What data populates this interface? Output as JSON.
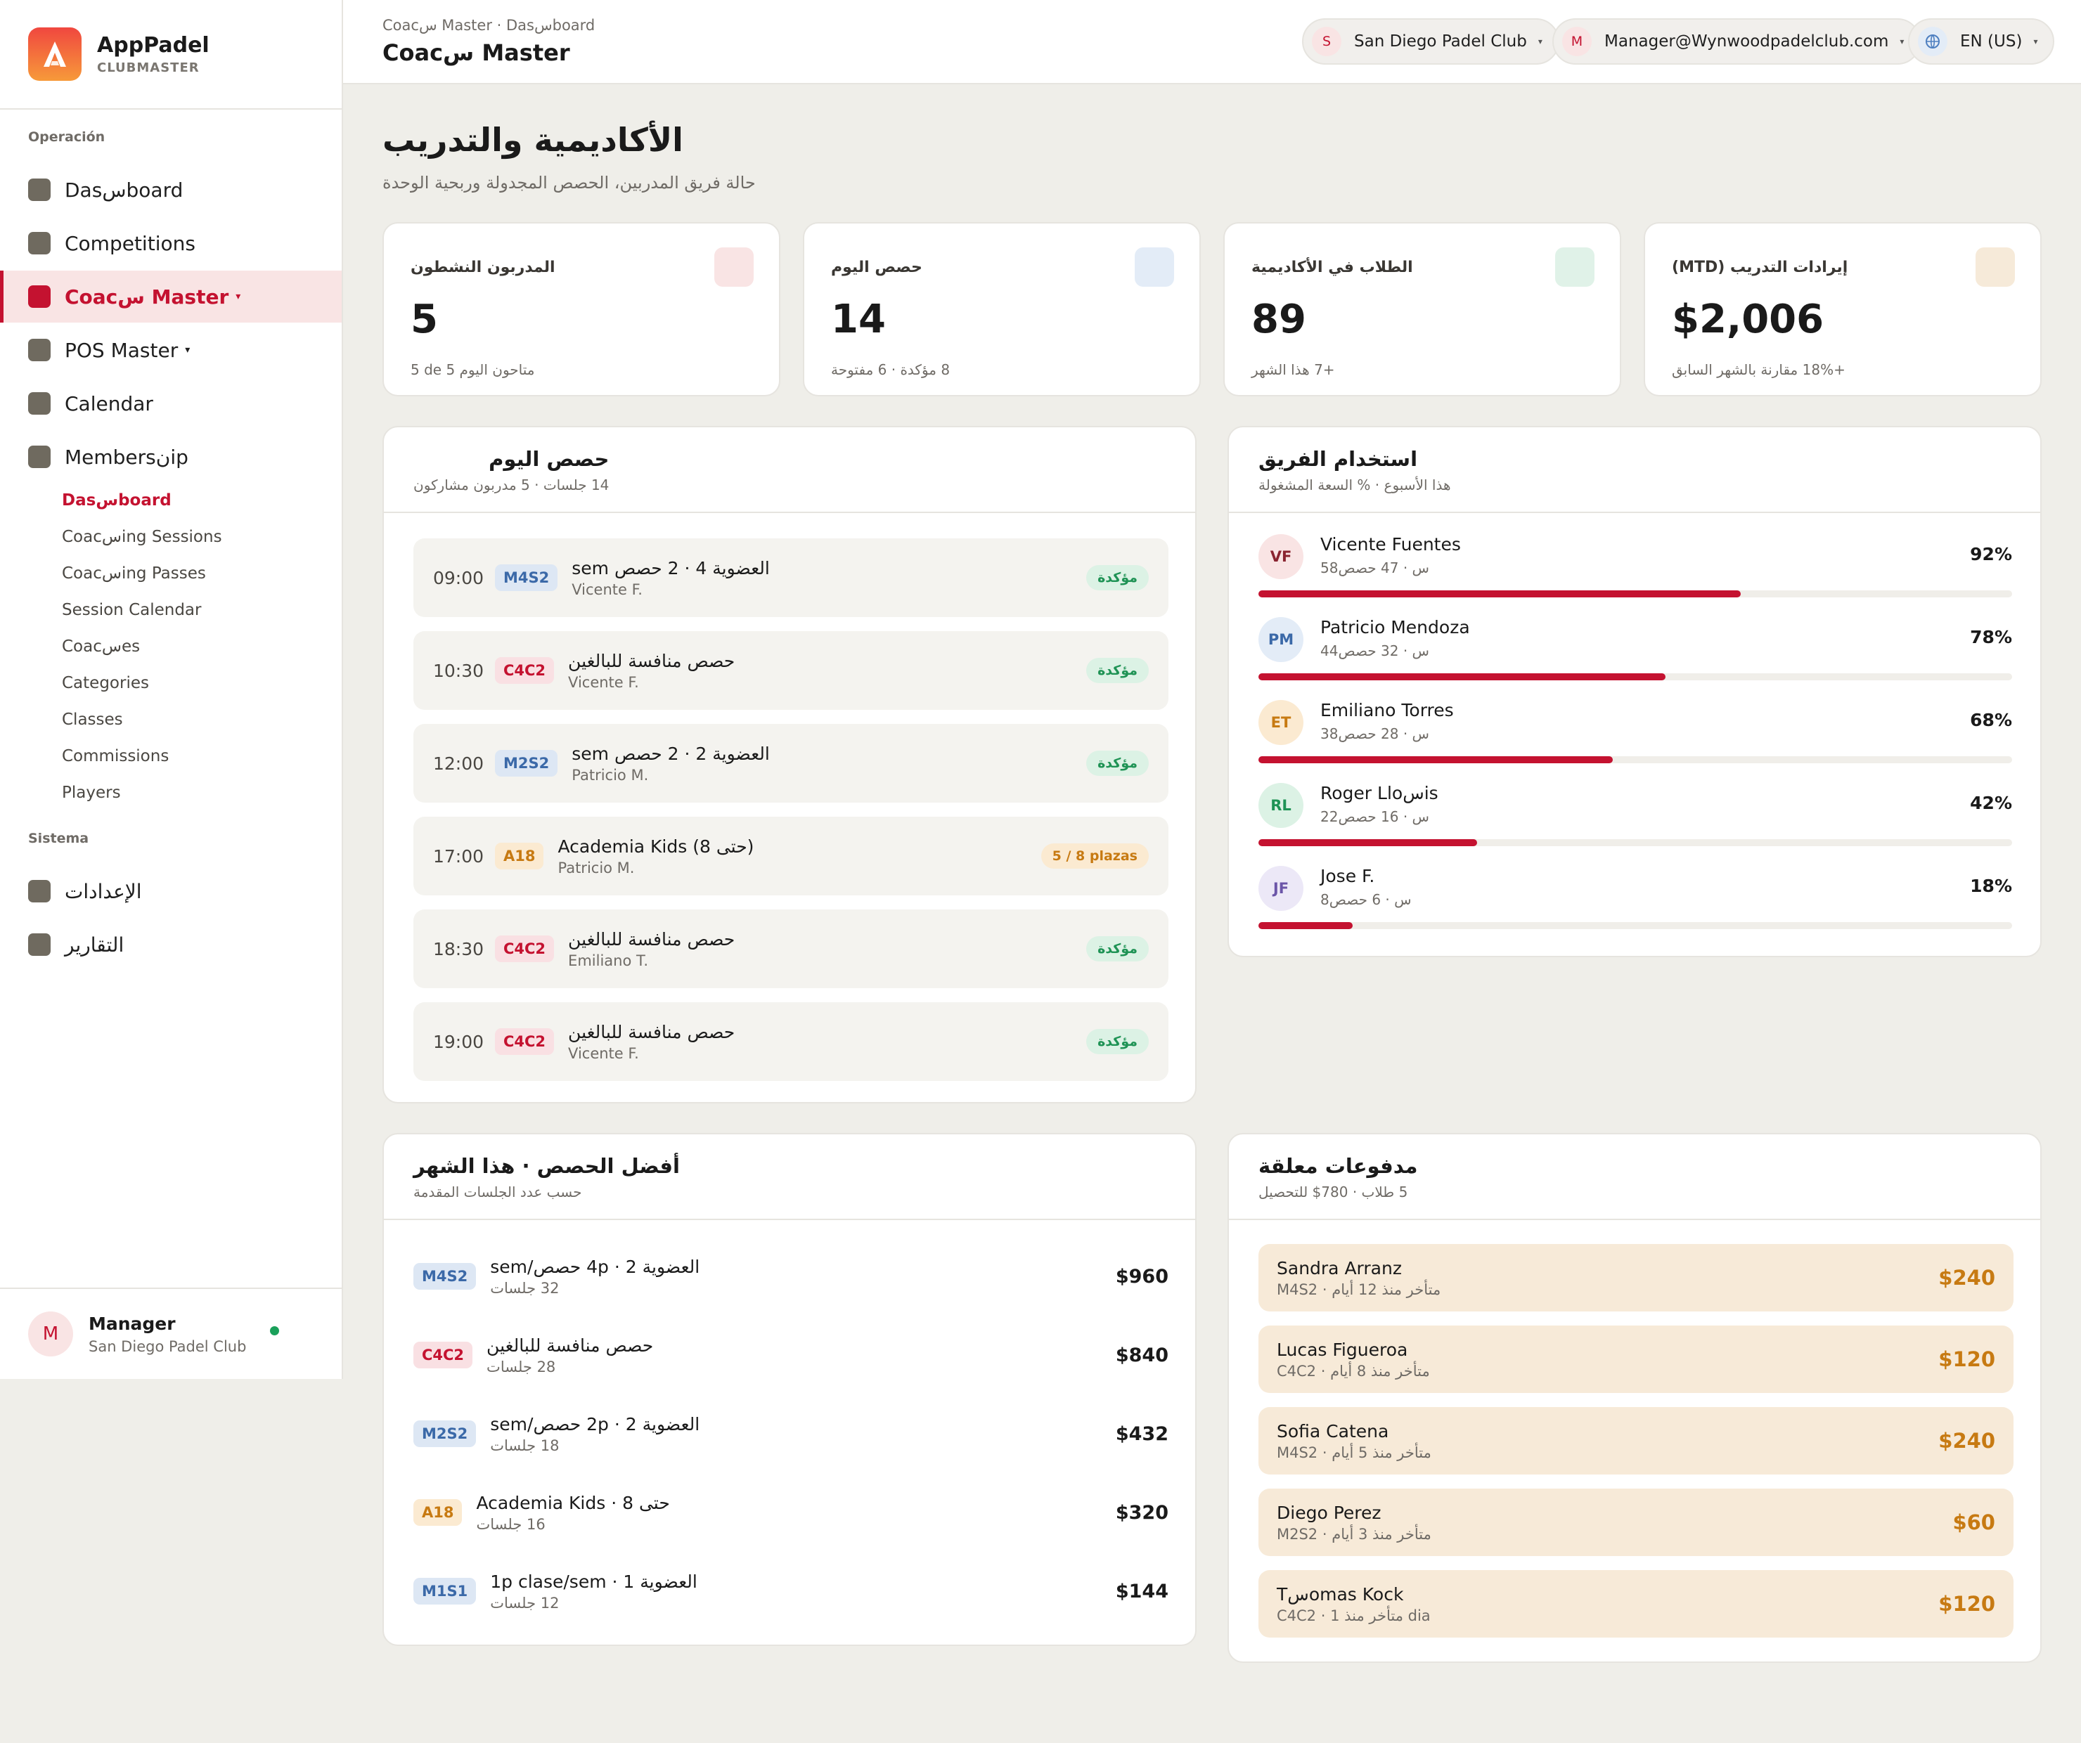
{
  "brand": {
    "name": "AppPadel",
    "sub": "CLUBMASTER"
  },
  "sidebar": {
    "section_ops": "Operación",
    "items": [
      {
        "label": "Dasسboard"
      },
      {
        "label": "Competitions"
      },
      {
        "label": "Coacس Master",
        "caret": "▾"
      },
      {
        "label": "POS Master",
        "caret": "▾"
      },
      {
        "label": "Calendar"
      },
      {
        "label": "Membersنip"
      }
    ],
    "sub_items": [
      {
        "label": "Dasسboard"
      },
      {
        "label": "Coacسing Sessions"
      },
      {
        "label": "Coacسing Passes"
      },
      {
        "label": "Session Calendar"
      },
      {
        "label": "Coacسes"
      },
      {
        "label": "Categories"
      },
      {
        "label": "Classes"
      },
      {
        "label": "Commissions"
      },
      {
        "label": "Players"
      }
    ],
    "section_sys": "Sistema",
    "sys_items": [
      {
        "label": "الإعدادات"
      },
      {
        "label": "التقارير"
      }
    ],
    "user": {
      "initial": "M",
      "name": "Manager",
      "club": "San Diego Padel Club"
    }
  },
  "topbar": {
    "breadcrumb": "Coacس Master · Dasسboard",
    "title": "Coacس Master",
    "club": {
      "initial": "S",
      "label": "San Diego Padel Club"
    },
    "account": {
      "initial": "M",
      "label": "Manager@Wynwoodpadelclub.com"
    },
    "lang": {
      "icon": "globe-icon",
      "label": "EN (US)"
    }
  },
  "page": {
    "title": "الأكاديمية والتدريب",
    "subtitle": "حالة فريق المدربين، الحصص المجدولة وربحية الوحدة"
  },
  "kpis": [
    {
      "label": "المدربون النشطون",
      "value": "5",
      "note": "5 de 5 متاحون اليوم",
      "color": "#f9e4e4"
    },
    {
      "label": "حصص اليوم",
      "value": "14",
      "note": "8 مؤكدة · 6 مفتوحة",
      "color": "#e3ecf7"
    },
    {
      "label": "الطلاب في الأكاديمية",
      "value": "89",
      "note": "+7 هذا الشهر",
      "color": "#e0f2e8"
    },
    {
      "label": "إيرادات التدريب (MTD)",
      "value": "$2,006",
      "note": "+18% مقارنة بالشهر السابق",
      "color": "#f6ead9"
    }
  ],
  "sessions": {
    "title": "حصص اليوم",
    "subtitle": "14 جلسات · 5 مدربون مشاركون",
    "rows": [
      {
        "time": "09:00",
        "code": "M4S2",
        "name": "العضوية 4 · 2 حصص sem",
        "coach": "Vicente F.",
        "status": "مؤكدة"
      },
      {
        "time": "10:30",
        "code": "C4C2",
        "name": "حصص منافسة للبالغين",
        "coach": "Vicente F.",
        "status": "مؤكدة"
      },
      {
        "time": "12:00",
        "code": "M2S2",
        "name": "العضوية 2 · 2 حصص sem",
        "coach": "Patricio M.",
        "status": "مؤكدة"
      },
      {
        "time": "17:00",
        "code": "A18",
        "name": "Academia Kids (حتى 8)",
        "coach": "Patricio M.",
        "status": "5 / 8 plazas"
      },
      {
        "time": "18:30",
        "code": "C4C2",
        "name": "حصص منافسة للبالغين",
        "coach": "Emiliano T.",
        "status": "مؤكدة"
      },
      {
        "time": "19:00",
        "code": "C4C2",
        "name": "حصص منافسة للبالغين",
        "coach": "Vicente F.",
        "status": "مؤكدة"
      }
    ]
  },
  "team": {
    "title": "استخدام الفريق",
    "subtitle": "هذا الأسبوع · % السعة المشغولة",
    "rows": [
      {
        "initials": "VF",
        "name": "Vicente Fuentes",
        "meta": "58س · 47 حصص",
        "pct_label": "92%",
        "pct": 0.64
      },
      {
        "initials": "PM",
        "name": "Patricio Mendoza",
        "meta": "44س · 32 حصص",
        "pct_label": "78%",
        "pct": 0.54
      },
      {
        "initials": "ET",
        "name": "Emiliano Torres",
        "meta": "38س · 28 حصص",
        "pct_label": "68%",
        "pct": 0.47
      },
      {
        "initials": "RL",
        "name": "Roger Lloسis",
        "meta": "22س · 16 حصص",
        "pct_label": "42%",
        "pct": 0.29
      },
      {
        "initials": "JF",
        "name": "Jose F.",
        "meta": "8س · 6 حصص",
        "pct_label": "18%",
        "pct": 0.125
      }
    ]
  },
  "top_sessions": {
    "title": "أفضل الحصص · هذا الشهر",
    "subtitle": "حسب عدد الجلسات المقدمة",
    "rows": [
      {
        "code": "M4S2",
        "name": "العضوية 2 · 4p حصص/sem",
        "count": "32 جلسات",
        "amount": "$960"
      },
      {
        "code": "C4C2",
        "name": "حصص منافسة للبالغين",
        "count": "28 جلسات",
        "amount": "$840"
      },
      {
        "code": "M2S2",
        "name": "العضوية 2 · 2p حصص/sem",
        "count": "18 جلسات",
        "amount": "$432"
      },
      {
        "code": "A18",
        "name": "Academia Kids · حتى 8",
        "count": "16 جلسات",
        "amount": "$320"
      },
      {
        "code": "M1S1",
        "name": "العضوية 1 · 1p clase/sem",
        "count": "12 جلسات",
        "amount": "$144"
      }
    ]
  },
  "payments": {
    "title": "مدفوعات معلقة",
    "subtitle": "5 طلاب · 780$ للتحصيل",
    "rows": [
      {
        "name": "Sandra Arranz",
        "meta": "M4S2 · متأخر منذ 12 أيام",
        "amount": "$240"
      },
      {
        "name": "Lucas Figueroa",
        "meta": "C4C2 · متأخر منذ 8 أيام",
        "amount": "$120"
      },
      {
        "name": "Sofia Catena",
        "meta": "M4S2 · متأخر منذ 5 أيام",
        "amount": "$240"
      },
      {
        "name": "Diego Perez",
        "meta": "M2S2 · متأخر منذ 3 أيام",
        "amount": "$60"
      },
      {
        "name": "Tسomas Kock",
        "meta": "C4C2 · متأخر منذ 1 dia",
        "amount": "$120"
      }
    ]
  }
}
